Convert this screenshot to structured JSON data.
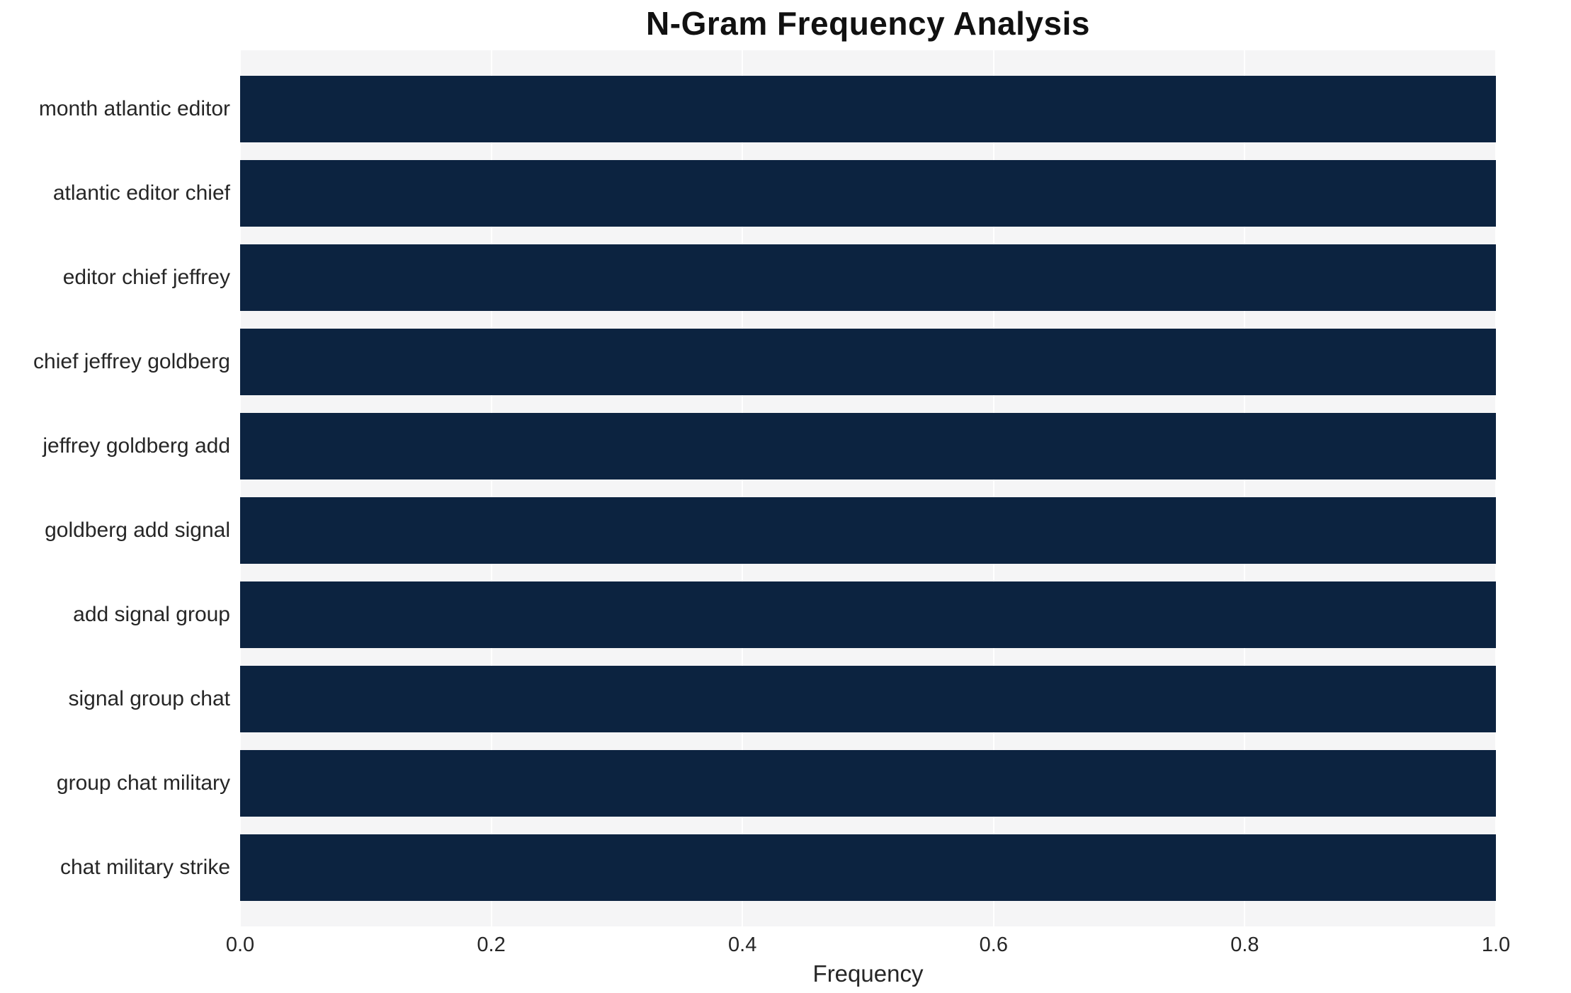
{
  "chart_data": {
    "type": "bar",
    "orientation": "horizontal",
    "title": "N-Gram Frequency Analysis",
    "xlabel": "Frequency",
    "ylabel": "",
    "categories": [
      "month atlantic editor",
      "atlantic editor chief",
      "editor chief jeffrey",
      "chief jeffrey goldberg",
      "jeffrey goldberg add",
      "goldberg add signal",
      "add signal group",
      "signal group chat",
      "group chat military",
      "chat military strike"
    ],
    "values": [
      1.0,
      1.0,
      1.0,
      1.0,
      1.0,
      1.0,
      1.0,
      1.0,
      1.0,
      1.0
    ],
    "xlim": [
      0.0,
      1.0
    ],
    "xticks": [
      0.0,
      0.2,
      0.4,
      0.6,
      0.8,
      1.0
    ],
    "xtick_labels": [
      "0.0",
      "0.2",
      "0.4",
      "0.6",
      "0.8",
      "1.0"
    ],
    "grid": "vertical-white-lines",
    "legend_position": "none",
    "colors": {
      "bar": "#0c2340",
      "plot_background": "#f5f5f6",
      "gridline": "#ffffff",
      "text": "#262626",
      "title": "#111111"
    }
  }
}
